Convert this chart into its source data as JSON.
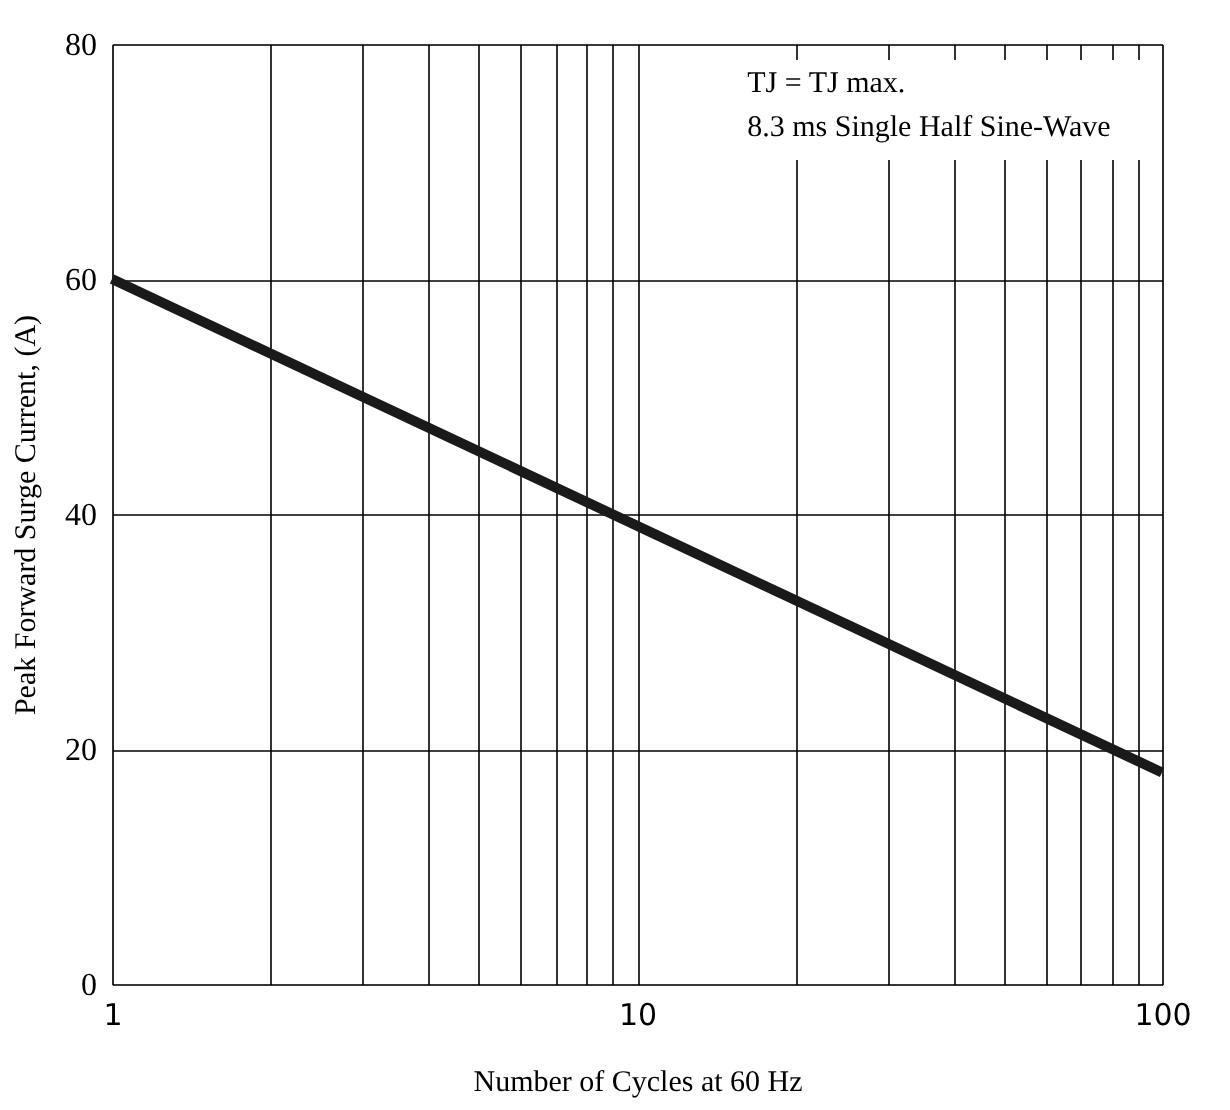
{
  "chart_data": {
    "type": "line",
    "xlabel": "Number of Cycles at 60 Hz",
    "ylabel": "Peak Forward Surge Current, (A)",
    "annotations": [
      "TJ = TJ max.",
      "8.3 ms Single Half Sine-Wave"
    ],
    "x": [
      1,
      100
    ],
    "series": [
      {
        "color": "#1a1a1a",
        "values": [
          60,
          18
        ]
      }
    ],
    "log": "x",
    "grid": true,
    "marker": "none",
    "line_style": "solid",
    "xlim": [
      1,
      100
    ],
    "ylim": [
      0,
      80
    ],
    "xticks": [
      1,
      {
        "value": 2,
        "label": null
      },
      {
        "value": 3,
        "label": null
      },
      {
        "value": 4,
        "label": null
      },
      {
        "value": 5,
        "label": null
      },
      {
        "value": 6,
        "label": null
      },
      {
        "value": 7,
        "label": null
      },
      {
        "value": 8,
        "label": null
      },
      {
        "value": 9,
        "label": null
      },
      10,
      {
        "value": 20,
        "label": null
      },
      {
        "value": 30,
        "label": null
      },
      {
        "value": 40,
        "label": null
      },
      {
        "value": 50,
        "label": null
      },
      {
        "value": 60,
        "label": null
      },
      {
        "value": 70,
        "label": null
      },
      {
        "value": 80,
        "label": null
      },
      {
        "value": 90,
        "label": null
      },
      100
    ],
    "yticks": [
      0,
      20,
      40,
      60,
      80
    ]
  }
}
